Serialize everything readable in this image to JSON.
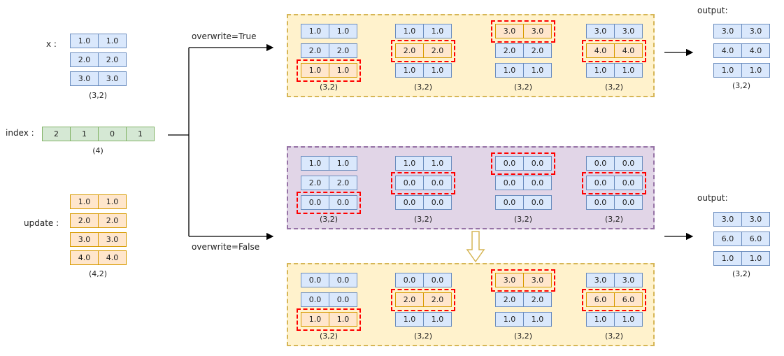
{
  "inputs": {
    "x": {
      "label": "x :",
      "rows": [
        [
          "1.0",
          "1.0"
        ],
        [
          "2.0",
          "2.0"
        ],
        [
          "3.0",
          "3.0"
        ]
      ],
      "shape": "(3,2)"
    },
    "index": {
      "label": "index :",
      "values": [
        "2",
        "1",
        "0",
        "1"
      ],
      "shape": "(4)"
    },
    "update": {
      "label": "update :",
      "rows": [
        [
          "1.0",
          "1.0"
        ],
        [
          "2.0",
          "2.0"
        ],
        [
          "3.0",
          "3.0"
        ],
        [
          "4.0",
          "4.0"
        ]
      ],
      "shape": "(4,2)"
    }
  },
  "branches": {
    "true_label": "overwrite=True",
    "false_label": "overwrite=False"
  },
  "panels": [
    {
      "color": "#fff2cc",
      "highlight_style": "update",
      "steps": [
        {
          "rows": [
            [
              "1.0",
              "1.0"
            ],
            [
              "2.0",
              "2.0"
            ],
            [
              "1.0",
              "1.0"
            ]
          ],
          "highlight": 2,
          "shape": "(3,2)"
        },
        {
          "rows": [
            [
              "1.0",
              "1.0"
            ],
            [
              "2.0",
              "2.0"
            ],
            [
              "1.0",
              "1.0"
            ]
          ],
          "highlight": 1,
          "shape": "(3,2)"
        },
        {
          "rows": [
            [
              "3.0",
              "3.0"
            ],
            [
              "2.0",
              "2.0"
            ],
            [
              "1.0",
              "1.0"
            ]
          ],
          "highlight": 0,
          "shape": "(3,2)"
        },
        {
          "rows": [
            [
              "3.0",
              "3.0"
            ],
            [
              "4.0",
              "4.0"
            ],
            [
              "1.0",
              "1.0"
            ]
          ],
          "highlight": 1,
          "shape": "(3,2)"
        }
      ]
    },
    {
      "color": "#e1d5e7",
      "highlight_style": "x",
      "steps": [
        {
          "rows": [
            [
              "1.0",
              "1.0"
            ],
            [
              "2.0",
              "2.0"
            ],
            [
              "0.0",
              "0.0"
            ]
          ],
          "highlight": 2,
          "shape": "(3,2)"
        },
        {
          "rows": [
            [
              "1.0",
              "1.0"
            ],
            [
              "0.0",
              "0.0"
            ],
            [
              "0.0",
              "0.0"
            ]
          ],
          "highlight": 1,
          "shape": "(3,2)"
        },
        {
          "rows": [
            [
              "0.0",
              "0.0"
            ],
            [
              "0.0",
              "0.0"
            ],
            [
              "0.0",
              "0.0"
            ]
          ],
          "highlight": 0,
          "shape": "(3,2)"
        },
        {
          "rows": [
            [
              "0.0",
              "0.0"
            ],
            [
              "0.0",
              "0.0"
            ],
            [
              "0.0",
              "0.0"
            ]
          ],
          "highlight": 1,
          "shape": "(3,2)"
        }
      ]
    },
    {
      "color": "#fff2cc",
      "highlight_style": "update",
      "steps": [
        {
          "rows": [
            [
              "0.0",
              "0.0"
            ],
            [
              "0.0",
              "0.0"
            ],
            [
              "1.0",
              "1.0"
            ]
          ],
          "highlight": 2,
          "shape": "(3,2)"
        },
        {
          "rows": [
            [
              "0.0",
              "0.0"
            ],
            [
              "2.0",
              "2.0"
            ],
            [
              "1.0",
              "1.0"
            ]
          ],
          "highlight": 1,
          "shape": "(3,2)"
        },
        {
          "rows": [
            [
              "3.0",
              "3.0"
            ],
            [
              "2.0",
              "2.0"
            ],
            [
              "1.0",
              "1.0"
            ]
          ],
          "highlight": 0,
          "shape": "(3,2)"
        },
        {
          "rows": [
            [
              "3.0",
              "3.0"
            ],
            [
              "6.0",
              "6.0"
            ],
            [
              "1.0",
              "1.0"
            ]
          ],
          "highlight": 1,
          "shape": "(3,2)"
        }
      ]
    }
  ],
  "outputs": [
    {
      "label": "output:",
      "rows": [
        [
          "3.0",
          "3.0"
        ],
        [
          "4.0",
          "4.0"
        ],
        [
          "1.0",
          "1.0"
        ]
      ],
      "shape": "(3,2)"
    },
    {
      "label": "output:",
      "rows": [
        [
          "3.0",
          "3.0"
        ],
        [
          "6.0",
          "6.0"
        ],
        [
          "1.0",
          "1.0"
        ]
      ],
      "shape": "(3,2)"
    }
  ],
  "colors": {
    "x_fill": "#dae8fc",
    "update_fill": "#ffe6cc",
    "index_fill": "#d5e8d4",
    "highlight_border": "#ff0000",
    "down_arrow": "#d6b656"
  }
}
